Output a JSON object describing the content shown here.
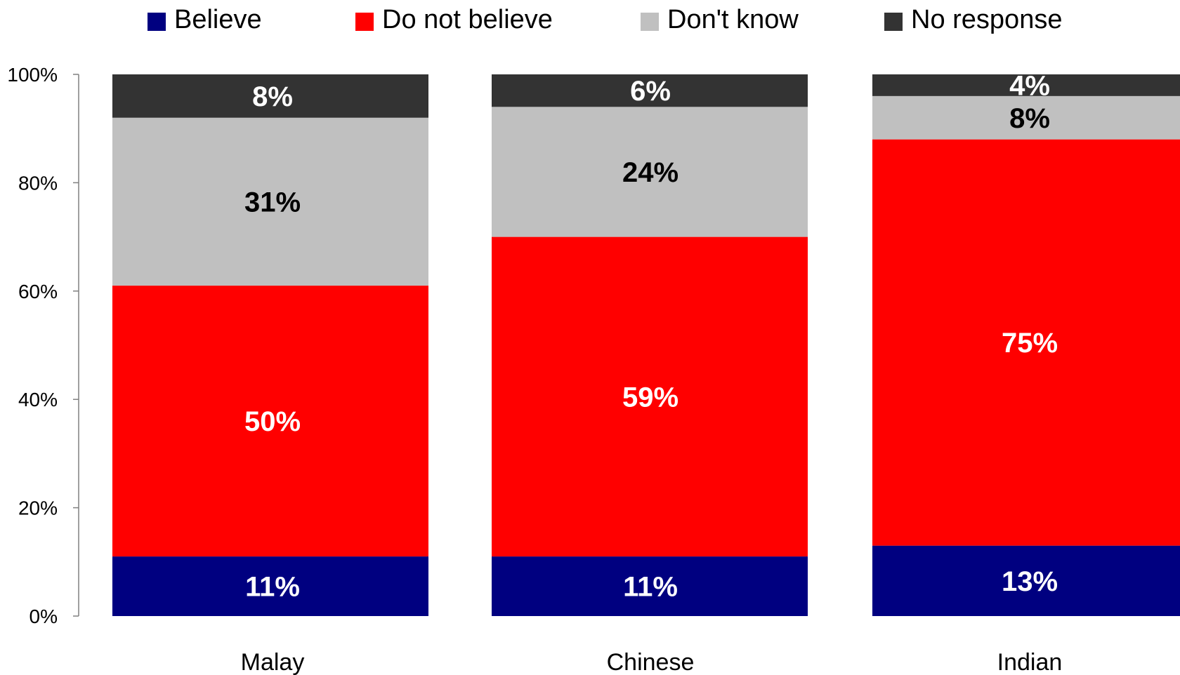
{
  "chart_data": {
    "type": "bar",
    "stacked": true,
    "categories": [
      "Malay",
      "Chinese",
      "Indian"
    ],
    "series": [
      {
        "name": "Believe",
        "color": "#000080",
        "label_color": "#ffffff",
        "values": [
          11,
          11,
          13
        ],
        "labels": [
          "11%",
          "11%",
          "13%"
        ]
      },
      {
        "name": "Do not believe",
        "color": "#ff0000",
        "label_color": "#ffffff",
        "values": [
          50,
          59,
          75
        ],
        "labels": [
          "50%",
          "59%",
          "75%"
        ]
      },
      {
        "name": "Don't know",
        "color": "#c0c0c0",
        "label_color": "#000000",
        "values": [
          31,
          24,
          8
        ],
        "labels": [
          "31%",
          "24%",
          "8%"
        ]
      },
      {
        "name": "No response",
        "color": "#333333",
        "label_color": "#ffffff",
        "values": [
          8,
          6,
          4
        ],
        "labels": [
          "8%",
          "6%",
          "4%"
        ]
      }
    ],
    "yticks": [
      "0%",
      "20%",
      "40%",
      "60%",
      "80%",
      "100%"
    ],
    "ylim": [
      0,
      100
    ],
    "grid": false,
    "legend_position": "top"
  }
}
